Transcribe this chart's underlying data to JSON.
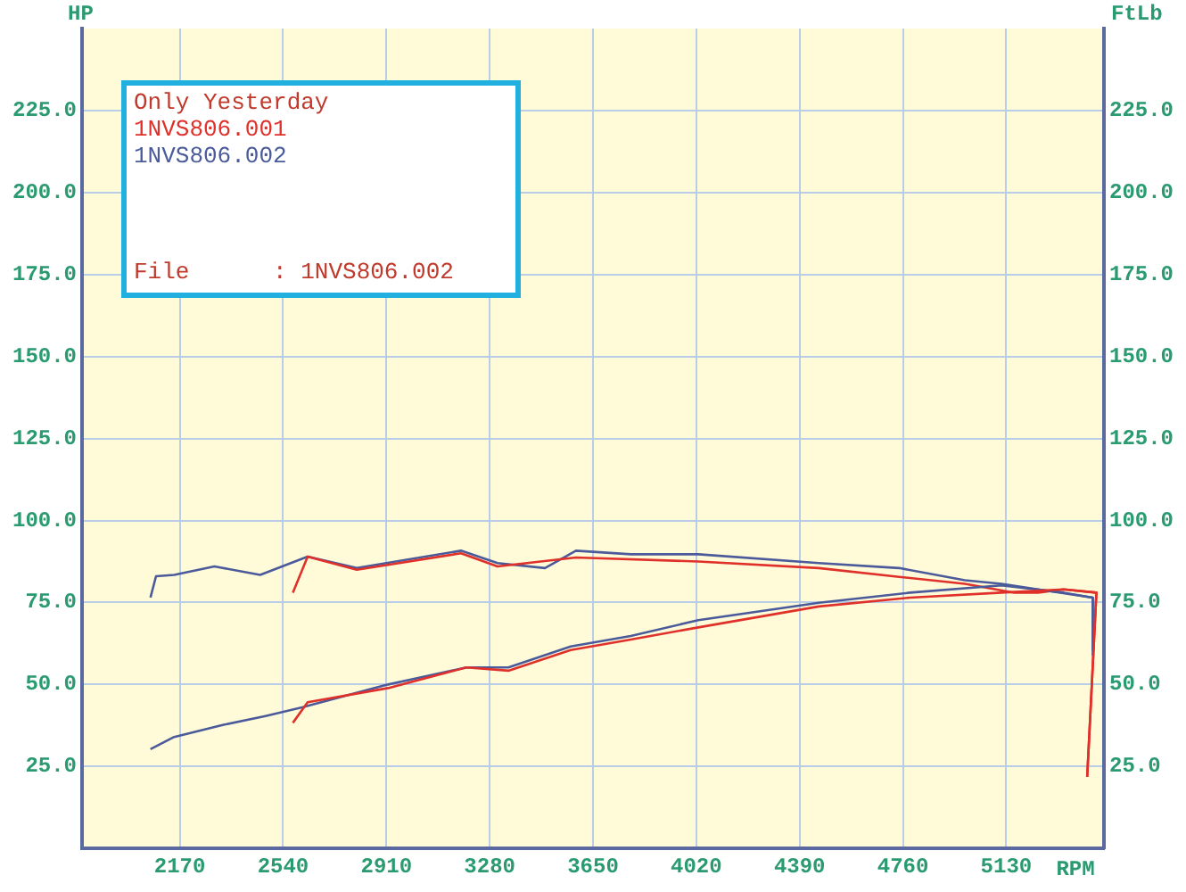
{
  "chart_data": {
    "type": "line",
    "xlabel": "RPM",
    "ylabel": "HP",
    "y2label": "FtLb",
    "legend_title": "Only Yesterday",
    "annotations": [
      "File      : 1NVS806.002"
    ],
    "legend": "top left",
    "grid": true,
    "marker": "none",
    "line_style": "solid",
    "xlim": [
      1820,
      5480
    ],
    "xticks": [
      2170,
      2540,
      2910,
      3280,
      3650,
      4020,
      4390,
      4760,
      5130
    ],
    "ylim": [
      0,
      250
    ],
    "yticks": [
      {
        "value": 25,
        "label": "25.0"
      },
      {
        "value": 50,
        "label": "50.0"
      },
      {
        "value": 75,
        "label": "75.0"
      },
      {
        "value": 100,
        "label": "100.0"
      },
      {
        "value": 125,
        "label": "125.0"
      },
      {
        "value": 150,
        "label": "150.0"
      },
      {
        "value": 175,
        "label": "175.0"
      },
      {
        "value": 200,
        "label": "200.0"
      },
      {
        "value": 225,
        "label": "225.0"
      }
    ],
    "y2lim": [
      0,
      250
    ],
    "y2ticks": [
      {
        "value": 25,
        "label": "25.0"
      },
      {
        "value": 50,
        "label": "50.0"
      },
      {
        "value": 75,
        "label": "75.0"
      },
      {
        "value": 100,
        "label": "100.0"
      },
      {
        "value": 125,
        "label": "125.0"
      },
      {
        "value": 150,
        "label": "150.0"
      },
      {
        "value": 175,
        "label": "175.0"
      },
      {
        "value": 200,
        "label": "200.0"
      },
      {
        "value": 225,
        "label": "225.0"
      }
    ],
    "series": [
      {
        "name": "1NVS806.001",
        "color": "#e0302a",
        "x": [
          2575,
          2628,
          2916,
          3197,
          3347,
          3570,
          3785,
          4027,
          4459,
          4786,
          5113,
          5336,
          5453,
          5420
        ],
        "values": [
          38.3,
          44.6,
          48.9,
          55.2,
          54.2,
          60.5,
          63.7,
          67.4,
          73.8,
          76.5,
          78,
          79,
          78,
          21.8
        ]
      },
      {
        "name": "1NVS806.002",
        "color": "#4a5a9a",
        "x": [
          2065,
          2150,
          2327,
          2477,
          2608,
          2916,
          3197,
          3347,
          3570,
          3785,
          4027,
          4459,
          4786,
          5113,
          5336,
          5440,
          5440
        ],
        "values": [
          30.3,
          34,
          37.7,
          40.4,
          43,
          50,
          55.2,
          55.2,
          61.6,
          64.8,
          69.6,
          74.9,
          78,
          80.2,
          78,
          76.5,
          59
        ]
      },
      {
        "color": "#e0302a",
        "x": [
          2575,
          2628,
          2804,
          3177,
          3308,
          3589,
          4027,
          4459,
          4747,
          4982,
          5159,
          5244,
          5336,
          5453,
          5420
        ],
        "values": [
          78,
          89,
          85,
          90,
          86,
          88.7,
          87.5,
          85.5,
          82.8,
          80.7,
          78,
          78,
          79,
          78,
          21.8
        ]
      },
      {
        "color": "#4a5a9a",
        "x": [
          2065,
          2085,
          2150,
          2294,
          2458,
          2628,
          2804,
          3177,
          3308,
          3478,
          3589,
          3785,
          4027,
          4459,
          4747,
          4982,
          5113,
          5244,
          5440,
          5440
        ],
        "values": [
          76.5,
          83,
          83.4,
          86,
          83.4,
          89,
          85.5,
          90.8,
          87,
          85.5,
          90.8,
          89.7,
          89.7,
          87,
          85.5,
          81.8,
          80.7,
          79,
          76.5,
          60.5
        ]
      }
    ]
  }
}
